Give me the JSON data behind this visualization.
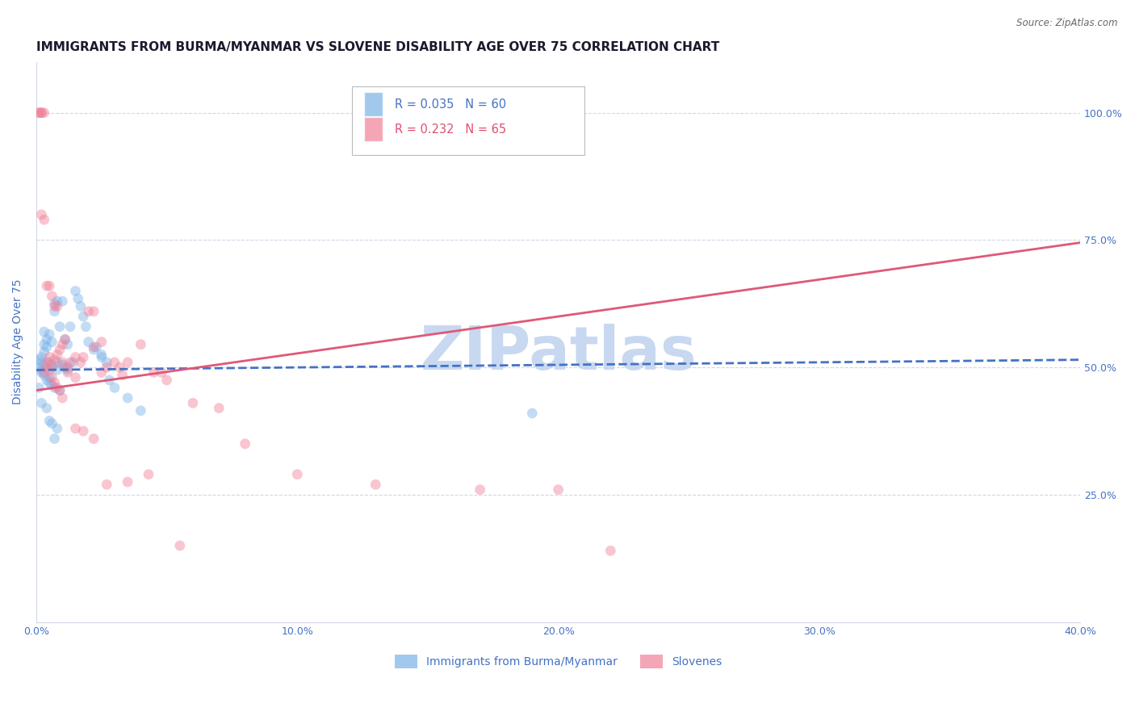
{
  "title": "IMMIGRANTS FROM BURMA/MYANMAR VS SLOVENE DISABILITY AGE OVER 75 CORRELATION CHART",
  "source": "Source: ZipAtlas.com",
  "ylabel": "Disability Age Over 75",
  "y_tick_labels": [
    "100.0%",
    "75.0%",
    "50.0%",
    "25.0%"
  ],
  "y_tick_values": [
    1.0,
    0.75,
    0.5,
    0.25
  ],
  "xlim": [
    0.0,
    0.4
  ],
  "ylim": [
    0.0,
    1.1
  ],
  "legend_blue_label": "Immigrants from Burma/Myanmar",
  "legend_pink_label": "Slovenes",
  "legend_R_blue": "R = 0.035",
  "legend_N_blue": "N = 60",
  "legend_R_pink": "R = 0.232",
  "legend_N_pink": "N = 65",
  "blue_color": "#7ab3e8",
  "pink_color": "#f08098",
  "blue_line_color": "#4472c4",
  "pink_line_color": "#e05878",
  "blue_text_color": "#4472c4",
  "pink_text_color": "#e05070",
  "axis_label_color": "#4472c4",
  "blue_line_x0": 0.0,
  "blue_line_y0": 0.495,
  "blue_line_x1": 0.4,
  "blue_line_y1": 0.515,
  "pink_line_x0": 0.0,
  "pink_line_y0": 0.455,
  "pink_line_x1": 0.4,
  "pink_line_y1": 0.745,
  "blue_x": [
    0.001,
    0.001,
    0.002,
    0.002,
    0.002,
    0.002,
    0.003,
    0.003,
    0.003,
    0.003,
    0.004,
    0.004,
    0.004,
    0.005,
    0.005,
    0.005,
    0.005,
    0.006,
    0.006,
    0.006,
    0.007,
    0.007,
    0.007,
    0.008,
    0.008,
    0.008,
    0.009,
    0.009,
    0.01,
    0.01,
    0.011,
    0.011,
    0.012,
    0.012,
    0.013,
    0.014,
    0.015,
    0.016,
    0.017,
    0.018,
    0.019,
    0.02,
    0.022,
    0.023,
    0.025,
    0.027,
    0.028,
    0.03,
    0.035,
    0.04,
    0.001,
    0.002,
    0.003,
    0.004,
    0.005,
    0.006,
    0.007,
    0.008,
    0.19,
    0.025
  ],
  "blue_y": [
    0.5,
    0.515,
    0.51,
    0.495,
    0.52,
    0.49,
    0.53,
    0.505,
    0.485,
    0.545,
    0.555,
    0.54,
    0.475,
    0.565,
    0.48,
    0.51,
    0.47,
    0.55,
    0.5,
    0.465,
    0.625,
    0.61,
    0.46,
    0.63,
    0.51,
    0.495,
    0.58,
    0.455,
    0.63,
    0.505,
    0.555,
    0.5,
    0.545,
    0.495,
    0.58,
    0.51,
    0.65,
    0.635,
    0.62,
    0.6,
    0.58,
    0.55,
    0.535,
    0.54,
    0.52,
    0.51,
    0.475,
    0.46,
    0.44,
    0.415,
    0.46,
    0.43,
    0.57,
    0.42,
    0.395,
    0.39,
    0.36,
    0.38,
    0.41,
    0.525
  ],
  "pink_x": [
    0.001,
    0.001,
    0.002,
    0.002,
    0.003,
    0.003,
    0.004,
    0.004,
    0.005,
    0.005,
    0.006,
    0.006,
    0.007,
    0.007,
    0.008,
    0.008,
    0.009,
    0.009,
    0.01,
    0.01,
    0.011,
    0.012,
    0.013,
    0.015,
    0.015,
    0.017,
    0.018,
    0.02,
    0.022,
    0.022,
    0.025,
    0.025,
    0.027,
    0.03,
    0.032,
    0.033,
    0.035,
    0.04,
    0.045,
    0.048,
    0.05,
    0.06,
    0.07,
    0.08,
    0.1,
    0.13,
    0.17,
    0.2,
    0.22,
    0.002,
    0.003,
    0.004,
    0.005,
    0.006,
    0.007,
    0.008,
    0.01,
    0.012,
    0.015,
    0.018,
    0.022,
    0.027,
    0.035,
    0.043,
    0.055
  ],
  "pink_y": [
    1.0,
    1.0,
    1.0,
    1.0,
    1.0,
    0.49,
    0.5,
    0.51,
    0.495,
    0.52,
    0.505,
    0.48,
    0.515,
    0.47,
    0.525,
    0.46,
    0.535,
    0.455,
    0.545,
    0.44,
    0.555,
    0.5,
    0.51,
    0.52,
    0.48,
    0.51,
    0.52,
    0.61,
    0.54,
    0.61,
    0.55,
    0.49,
    0.5,
    0.51,
    0.5,
    0.485,
    0.51,
    0.545,
    0.49,
    0.49,
    0.475,
    0.43,
    0.42,
    0.35,
    0.29,
    0.27,
    0.26,
    0.26,
    0.14,
    0.8,
    0.79,
    0.66,
    0.66,
    0.64,
    0.62,
    0.62,
    0.51,
    0.49,
    0.38,
    0.375,
    0.36,
    0.27,
    0.275,
    0.29,
    0.15
  ],
  "watermark": "ZIPatlas",
  "watermark_color": "#c8d8f0",
  "background_color": "#ffffff",
  "grid_color": "#d0d8e8",
  "title_fontsize": 11,
  "axis_fontsize": 10,
  "tick_fontsize": 9,
  "marker_size": 85,
  "marker_alpha": 0.45,
  "line_width": 2.0,
  "blue_line_style": "--",
  "pink_line_style": "-"
}
